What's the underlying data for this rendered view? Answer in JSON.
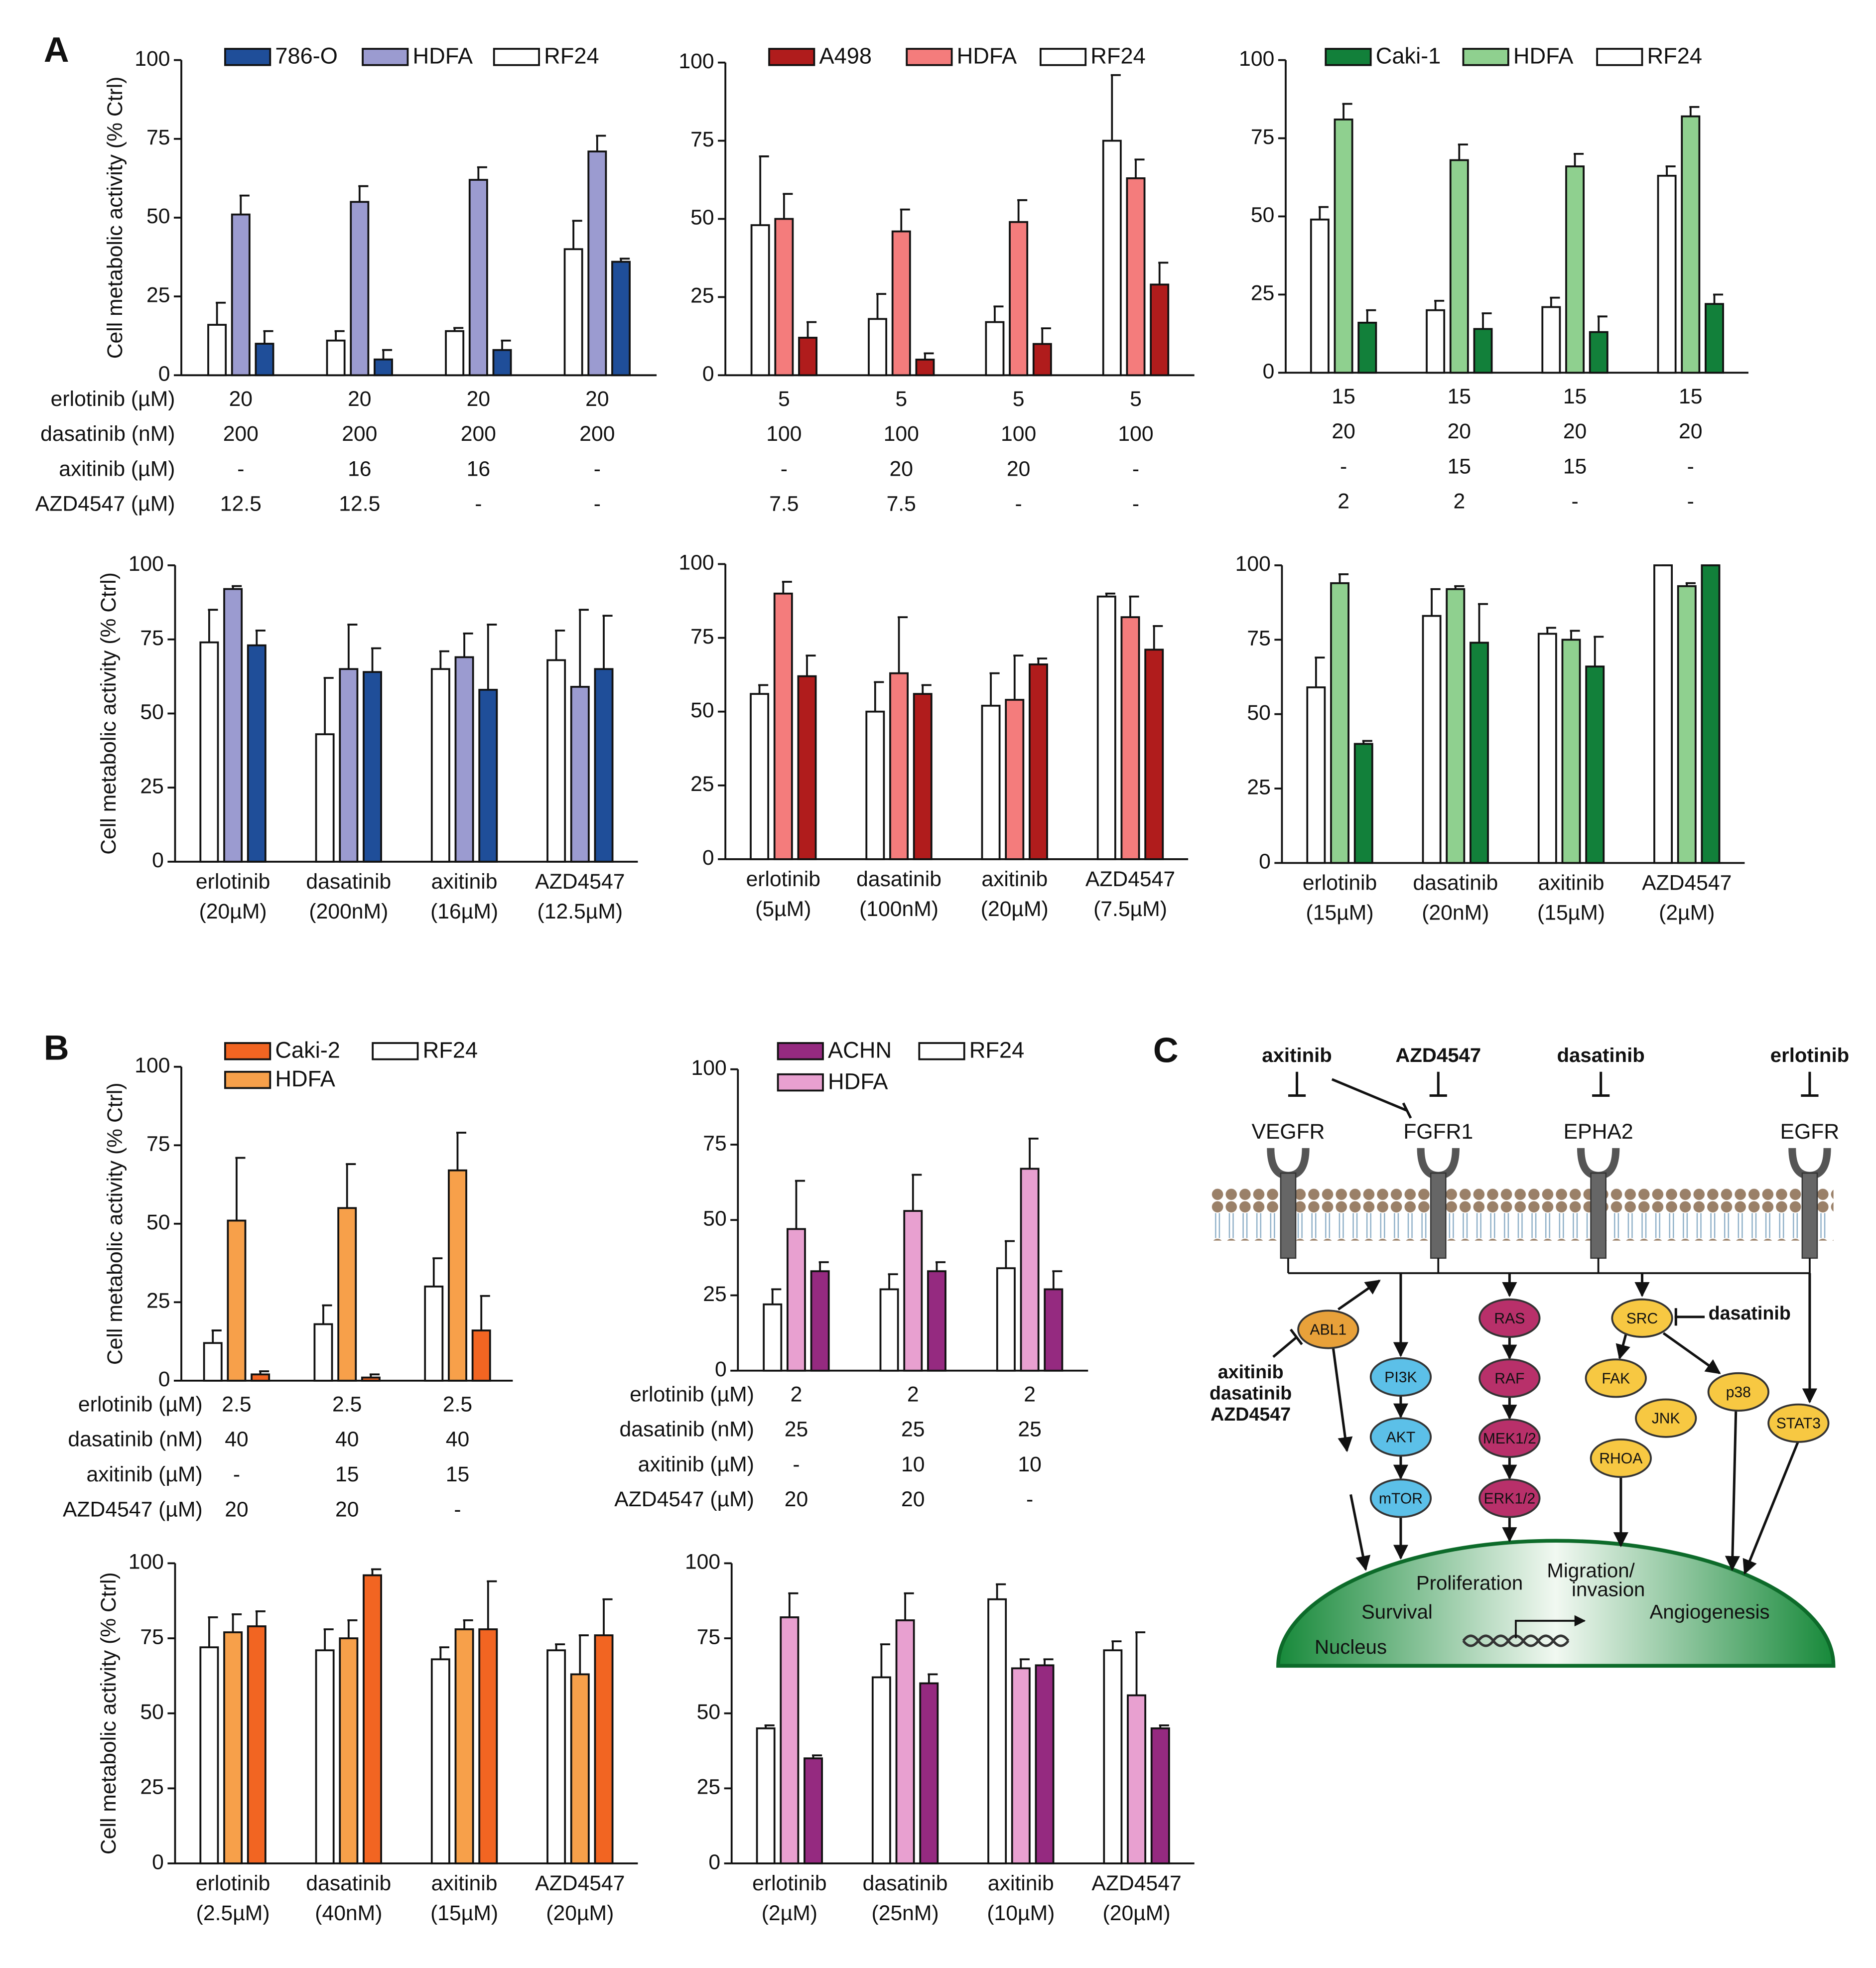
{
  "panel_labels": [
    "A",
    "B",
    "C"
  ],
  "chart_data": [
    {
      "type": "bar",
      "ylabel": "Cell metabolic activity (% Ctrl)",
      "ylim": [
        0,
        100
      ],
      "yticks": [
        0,
        25,
        50,
        75,
        100
      ],
      "series": [
        {
          "name": "RF24",
          "color": "#ffffff",
          "values": [
            16,
            11,
            14,
            40
          ],
          "errors": [
            7,
            3,
            1,
            9
          ]
        },
        {
          "name": "HDFA",
          "color": "#9b9bd0",
          "values": [
            51,
            55,
            62,
            71
          ],
          "errors": [
            6,
            5,
            4,
            5
          ]
        },
        {
          "name": "786-O",
          "color": "#1f4e99",
          "values": [
            10,
            5,
            8,
            36
          ],
          "errors": [
            4,
            3,
            3,
            1
          ]
        }
      ],
      "conditions": {
        "labels": [
          "erlotinib (µM)",
          "dasatinib (nM)",
          "axitinib (µM)",
          "AZD4547 (µM)"
        ],
        "rows": [
          [
            "20",
            "20",
            "20",
            "20"
          ],
          [
            "200",
            "200",
            "200",
            "200"
          ],
          [
            "-",
            "16",
            "16",
            "-"
          ],
          [
            "12.5",
            "12.5",
            "-",
            "-"
          ]
        ]
      }
    },
    {
      "type": "bar",
      "ylim": [
        0,
        100
      ],
      "yticks": [
        0,
        25,
        50,
        75,
        100
      ],
      "series": [
        {
          "name": "RF24",
          "color": "#ffffff",
          "values": [
            48,
            18,
            17,
            75
          ],
          "errors": [
            22,
            8,
            5,
            21
          ]
        },
        {
          "name": "HDFA",
          "color": "#f47c7c",
          "values": [
            50,
            46,
            49,
            63
          ],
          "errors": [
            8,
            7,
            7,
            6
          ]
        },
        {
          "name": "A498",
          "color": "#b01c1c",
          "values": [
            12,
            5,
            10,
            29
          ],
          "errors": [
            5,
            2,
            5,
            7
          ]
        }
      ],
      "conditions": {
        "rows": [
          [
            "5",
            "5",
            "5",
            "5"
          ],
          [
            "100",
            "100",
            "100",
            "100"
          ],
          [
            "-",
            "20",
            "20",
            "-"
          ],
          [
            "7.5",
            "7.5",
            "-",
            "-"
          ]
        ]
      }
    },
    {
      "type": "bar",
      "ylim": [
        0,
        100
      ],
      "yticks": [
        0,
        25,
        50,
        75,
        100
      ],
      "series": [
        {
          "name": "RF24",
          "color": "#ffffff",
          "values": [
            49,
            20,
            21,
            63
          ],
          "errors": [
            4,
            3,
            3,
            3
          ]
        },
        {
          "name": "HDFA",
          "color": "#8fd08f",
          "values": [
            81,
            68,
            66,
            82
          ],
          "errors": [
            5,
            5,
            4,
            3
          ]
        },
        {
          "name": "Caki-1",
          "color": "#12803a",
          "values": [
            16,
            14,
            13,
            22
          ],
          "errors": [
            4,
            5,
            5,
            3
          ]
        }
      ],
      "conditions": {
        "rows": [
          [
            "15",
            "15",
            "15",
            "15"
          ],
          [
            "20",
            "20",
            "20",
            "20"
          ],
          [
            "-",
            "15",
            "15",
            "-"
          ],
          [
            "2",
            "2",
            "-",
            "-"
          ]
        ]
      }
    },
    {
      "type": "bar",
      "ylabel": "Cell metabolic activity (% Ctrl)",
      "ylim": [
        0,
        100
      ],
      "yticks": [
        0,
        25,
        50,
        75,
        100
      ],
      "categories": [
        [
          "erlotinib",
          "(20µM)"
        ],
        [
          "dasatinib",
          "(200nM)"
        ],
        [
          "axitinib",
          "(16µM)"
        ],
        [
          "AZD4547",
          "(12.5µM)"
        ]
      ],
      "series": [
        {
          "color": "#ffffff",
          "values": [
            74,
            43,
            65,
            68
          ],
          "errors": [
            11,
            19,
            6,
            10
          ]
        },
        {
          "color": "#9b9bd0",
          "values": [
            92,
            65,
            69,
            59
          ],
          "errors": [
            1,
            15,
            8,
            26
          ]
        },
        {
          "color": "#1f4e99",
          "values": [
            73,
            64,
            58,
            65
          ],
          "errors": [
            5,
            8,
            22,
            18
          ]
        }
      ]
    },
    {
      "type": "bar",
      "ylim": [
        0,
        100
      ],
      "yticks": [
        0,
        25,
        50,
        75,
        100
      ],
      "categories": [
        [
          "erlotinib",
          "(5µM)"
        ],
        [
          "dasatinib",
          "(100nM)"
        ],
        [
          "axitinib",
          "(20µM)"
        ],
        [
          "AZD4547",
          "(7.5µM)"
        ]
      ],
      "series": [
        {
          "color": "#ffffff",
          "values": [
            56,
            50,
            52,
            89
          ],
          "errors": [
            3,
            10,
            11,
            1
          ]
        },
        {
          "color": "#f47c7c",
          "values": [
            90,
            63,
            54,
            82
          ],
          "errors": [
            4,
            19,
            15,
            7
          ]
        },
        {
          "color": "#b01c1c",
          "values": [
            62,
            56,
            66,
            71
          ],
          "errors": [
            7,
            3,
            2,
            8
          ]
        }
      ]
    },
    {
      "type": "bar",
      "ylim": [
        0,
        100
      ],
      "yticks": [
        0,
        25,
        50,
        75,
        100
      ],
      "categories": [
        [
          "erlotinib",
          "(15µM)"
        ],
        [
          "dasatinib",
          "(20nM)"
        ],
        [
          "axitinib",
          "(15µM)"
        ],
        [
          "AZD4547",
          "(2µM)"
        ]
      ],
      "series": [
        {
          "color": "#ffffff",
          "values": [
            59,
            83,
            77,
            100
          ],
          "errors": [
            10,
            9,
            2,
            0
          ]
        },
        {
          "color": "#8fd08f",
          "values": [
            94,
            92,
            75,
            93
          ],
          "errors": [
            3,
            1,
            3,
            1
          ]
        },
        {
          "color": "#12803a",
          "values": [
            40,
            74,
            66,
            100
          ],
          "errors": [
            1,
            13,
            10,
            0
          ]
        }
      ]
    },
    {
      "type": "bar",
      "ylabel": "Cell metabolic activity (% Ctrl)",
      "ylim": [
        0,
        100
      ],
      "yticks": [
        0,
        25,
        50,
        75,
        100
      ],
      "series": [
        {
          "name": "RF24",
          "color": "#ffffff",
          "values": [
            12,
            18,
            30
          ],
          "errors": [
            4,
            6,
            9
          ]
        },
        {
          "name": "HDFA",
          "color": "#f7a04a",
          "values": [
            51,
            55,
            67
          ],
          "errors": [
            20,
            14,
            12
          ]
        },
        {
          "name": "Caki-2",
          "color": "#f26522",
          "values": [
            2,
            1,
            16
          ],
          "errors": [
            1,
            1,
            11
          ]
        }
      ],
      "conditions": {
        "labels": [
          "erlotinib (µM)",
          "dasatinib (nM)",
          "axitinib (µM)",
          "AZD4547 (µM)"
        ],
        "rows": [
          [
            "2.5",
            "2.5",
            "2.5"
          ],
          [
            "40",
            "40",
            "40"
          ],
          [
            "-",
            "15",
            "15"
          ],
          [
            "20",
            "20",
            "-"
          ]
        ]
      }
    },
    {
      "type": "bar",
      "ylim": [
        0,
        100
      ],
      "yticks": [
        0,
        25,
        50,
        75,
        100
      ],
      "series": [
        {
          "name": "RF24",
          "color": "#ffffff",
          "values": [
            22,
            27,
            34
          ],
          "errors": [
            5,
            5,
            9
          ]
        },
        {
          "name": "HDFA",
          "color": "#e8a0d0",
          "values": [
            47,
            53,
            67
          ],
          "errors": [
            16,
            12,
            10
          ]
        },
        {
          "name": "ACHN",
          "color": "#952a80",
          "values": [
            33,
            33,
            27
          ],
          "errors": [
            3,
            3,
            6
          ]
        }
      ],
      "conditions": {
        "labels": [
          "erlotinib (µM)",
          "dasatinib (nM)",
          "axitinib (µM)",
          "AZD4547 (µM)"
        ],
        "rows": [
          [
            "2",
            "2",
            "2"
          ],
          [
            "25",
            "25",
            "25"
          ],
          [
            "-",
            "10",
            "10"
          ],
          [
            "20",
            "20",
            "-"
          ]
        ]
      }
    },
    {
      "type": "bar",
      "ylabel": "Cell metabolic activity (% Ctrl)",
      "ylim": [
        0,
        100
      ],
      "yticks": [
        0,
        25,
        50,
        75,
        100
      ],
      "categories": [
        [
          "erlotinib",
          "(2.5µM)"
        ],
        [
          "dasatinib",
          "(40nM)"
        ],
        [
          "axitinib",
          "(15µM)"
        ],
        [
          "AZD4547",
          "(20µM)"
        ]
      ],
      "series": [
        {
          "color": "#ffffff",
          "values": [
            72,
            71,
            68,
            71
          ],
          "errors": [
            10,
            7,
            4,
            2
          ]
        },
        {
          "color": "#f7a04a",
          "values": [
            77,
            75,
            78,
            63
          ],
          "errors": [
            6,
            6,
            3,
            13
          ]
        },
        {
          "color": "#f26522",
          "values": [
            79,
            96,
            78,
            76
          ],
          "errors": [
            5,
            2,
            16,
            12
          ]
        }
      ]
    },
    {
      "type": "bar",
      "ylim": [
        0,
        100
      ],
      "yticks": [
        0,
        25,
        50,
        75,
        100
      ],
      "categories": [
        [
          "erlotinib",
          "(2µM)"
        ],
        [
          "dasatinib",
          "(25nM)"
        ],
        [
          "axitinib",
          "(10µM)"
        ],
        [
          "AZD4547",
          "(20µM)"
        ]
      ],
      "series": [
        {
          "color": "#ffffff",
          "values": [
            45,
            62,
            88,
            71
          ],
          "errors": [
            1,
            11,
            5,
            3
          ]
        },
        {
          "color": "#e8a0d0",
          "values": [
            82,
            81,
            65,
            56
          ],
          "errors": [
            8,
            9,
            3,
            21
          ]
        },
        {
          "color": "#952a80",
          "values": [
            35,
            60,
            66,
            45
          ],
          "errors": [
            1,
            3,
            2,
            1
          ]
        }
      ]
    }
  ],
  "diagram": {
    "drugs": [
      "axitinib",
      "AZD4547",
      "dasatinib",
      "erlotinib"
    ],
    "receptors": [
      "VEGFR",
      "FGFR1",
      "EPHA2",
      "EGFR"
    ],
    "nodes": [
      "ABL1",
      "PI3K",
      "AKT",
      "mTOR",
      "RAS",
      "RAF",
      "MEK1/2",
      "ERK1/2",
      "SRC",
      "FAK",
      "JNK",
      "RHOA",
      "p38",
      "STAT3"
    ],
    "src_drug": "dasatinib",
    "abl1_drugs": [
      "axitinib",
      "dasatinib",
      "AZD4547"
    ],
    "nucleus_labels": [
      "Proliferation",
      "Survival",
      "Angiogenesis",
      "Nucleus"
    ],
    "migration": [
      "Migration/",
      "invasion"
    ]
  }
}
